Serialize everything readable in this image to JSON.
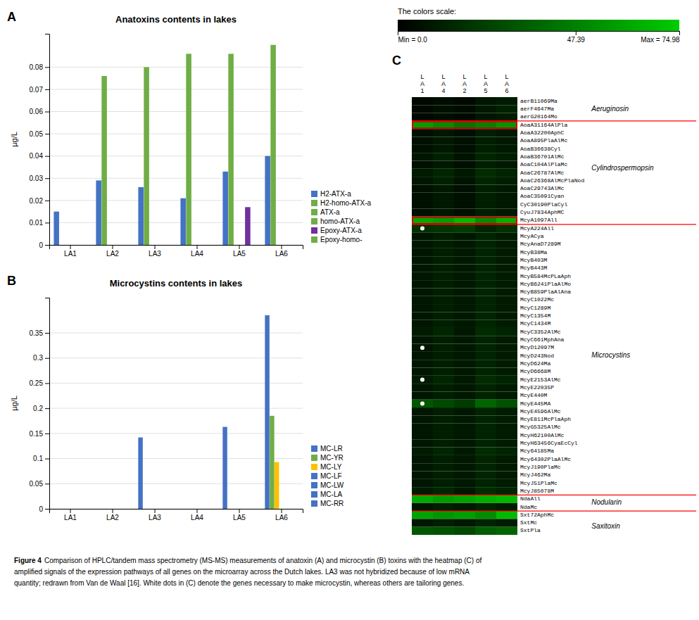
{
  "chart_data": [
    {
      "type": "bar",
      "title": "Anatoxins contents in lakes",
      "ylabel": "µg/L",
      "annotations": [
        "A"
      ],
      "categories": [
        "LA1",
        "LA2",
        "LA3",
        "LA4",
        "LA5",
        "LA6"
      ],
      "series": [
        {
          "name": "H2-ATX-a",
          "color": "#4472C4",
          "values": [
            0.015,
            0.029,
            0.026,
            0.021,
            0.033,
            0.04
          ]
        },
        {
          "name": "H2-homo-ATX-a",
          "color": "#70AD47",
          "values": [
            0.0,
            0.076,
            0.08,
            0.086,
            0.086,
            0.09
          ]
        },
        {
          "name": "ATX-a",
          "color": "#70AD47",
          "values": [
            0.0,
            0.0,
            0.0,
            0.0,
            0.0,
            0.0
          ]
        },
        {
          "name": "homo-ATX-a",
          "color": "#70AD47",
          "values": [
            0.0,
            0.0,
            0.0,
            0.0,
            0.0,
            0.0
          ]
        },
        {
          "name": "Epoxy-ATX-a",
          "color": "#7030A0",
          "values": [
            0.0,
            0.0,
            0.0,
            0.0,
            0.017,
            0.0
          ]
        },
        {
          "name": "Epoxy-homo-",
          "color": "#70AD47",
          "values": [
            0.0,
            0.0,
            0.0,
            0.0,
            0.0,
            0.0
          ]
        }
      ],
      "ylim": [
        0,
        0.095
      ],
      "yticks": [
        0,
        0.01,
        0.02,
        0.03,
        0.04,
        0.05,
        0.06,
        0.07,
        0.08
      ],
      "grid": true,
      "legend": "lower right"
    },
    {
      "type": "bar",
      "title": "Microcystins contents in lakes",
      "ylabel": "µg/L",
      "annotations": [
        "B"
      ],
      "categories": [
        "LA1",
        "LA2",
        "LA3",
        "LA4",
        "LA5",
        "LA6"
      ],
      "series": [
        {
          "name": "MC-LR",
          "color": "#4472C4",
          "values": [
            0.0,
            0.0,
            0.142,
            0.0,
            0.163,
            0.385
          ]
        },
        {
          "name": "MC-YR",
          "color": "#70AD47",
          "values": [
            0.0,
            0.0,
            0.0,
            0.0,
            0.0,
            0.185
          ]
        },
        {
          "name": "MC-LY",
          "color": "#FFC000",
          "values": [
            0.0,
            0.0,
            0.0,
            0.0,
            0.0,
            0.093
          ]
        },
        {
          "name": "MC-LF",
          "color": "#4472C4",
          "values": [
            0.0,
            0.0,
            0.0,
            0.0,
            0.0,
            0.0
          ]
        },
        {
          "name": "MC-LW",
          "color": "#4472C4",
          "values": [
            0.0,
            0.0,
            0.0,
            0.0,
            0.0,
            0.0
          ]
        },
        {
          "name": "MC-LA",
          "color": "#4472C4",
          "values": [
            0.0,
            0.0,
            0.0,
            0.0,
            0.0,
            0.0
          ]
        },
        {
          "name": "MC-RR",
          "color": "#4472C4",
          "values": [
            0.0,
            0.0,
            0.0,
            0.0,
            0.0,
            0.0
          ]
        }
      ],
      "ylim": [
        0,
        0.42
      ],
      "yticks": [
        0,
        0.05,
        0.1,
        0.15,
        0.2,
        0.25,
        0.3,
        0.35
      ],
      "grid": true,
      "legend": "lower right"
    },
    {
      "type": "heatmap",
      "annotations": [
        "C"
      ],
      "columns": [
        "L\nA\n1",
        "L\nA\n4",
        "L\nA\n2",
        "L\nA\n5",
        "L\nA\n6"
      ],
      "rows": [
        "aerB11069Ma",
        "aerF4647Ma",
        "aerG20164Mo",
        "AoaA31164AlPla",
        "AoaA32200AphC",
        "AoaA895PlaAlMc",
        "AoaB36638Cyl",
        "AoaB36701AlMc",
        "AoaC104AlPlaMc",
        "AoaC26787AlMc",
        "AoaC26368AlMcPlaNod",
        "AoaC29743AlMc",
        "AoaC35091Cyan",
        "CyC30190PlaCyl",
        "CyuJ7834AphMC",
        "McyA1097All",
        "McyA224All",
        "McyACya",
        "McyAnaD7289M",
        "McyB38Ma",
        "McyB403M",
        "McyB443M",
        "McyB584McPLaAph",
        "McyB6241PlaAlMo",
        "McyB859PlaAlAna",
        "McyC1022Mc",
        "McyC1289M",
        "McyC1354M",
        "McyC1434M",
        "McyC3352AlMc",
        "McyC661MphAna",
        "McyD12097M",
        "McyD243Nod",
        "McyD624Ma",
        "McyD6668M",
        "McyE2153AlMc",
        "McyE22035P",
        "McyE440M",
        "McyE445MA",
        "McyE4596AlMc",
        "McyE811McPlaAph",
        "McyG5325AlMc",
        "McyH62100AlMc",
        "McyH63456CyaEcCyl",
        "Mcy64185Ma",
        "Mcy64302PlaAlMc",
        "McyJ190PlaMc",
        "McyJ462Ma",
        "McyJ51PlaMc",
        "McyJ85078M",
        "NdaAll",
        "NdaMc",
        "Sxt72AphMc",
        "SxtMc",
        "SxtPla"
      ],
      "values": [
        [
          3,
          5,
          4,
          8,
          10
        ],
        [
          3,
          6,
          4,
          9,
          12
        ],
        [
          3,
          5,
          4,
          8,
          10
        ],
        [
          58,
          52,
          43,
          48,
          55
        ],
        [
          6,
          9,
          6,
          11,
          9
        ],
        [
          6,
          9,
          6,
          11,
          9
        ],
        [
          6,
          9,
          6,
          11,
          9
        ],
        [
          8,
          12,
          7,
          14,
          11
        ],
        [
          6,
          9,
          6,
          11,
          9
        ],
        [
          10,
          14,
          9,
          16,
          13
        ],
        [
          8,
          12,
          7,
          14,
          11
        ],
        [
          6,
          9,
          6,
          11,
          9
        ],
        [
          6,
          9,
          6,
          11,
          9
        ],
        [
          6,
          9,
          6,
          11,
          9
        ],
        [
          6,
          9,
          6,
          11,
          9
        ],
        [
          62,
          58,
          68,
          52,
          65
        ],
        [
          18,
          20,
          22,
          14,
          18
        ],
        [
          8,
          11,
          9,
          13,
          10
        ],
        [
          8,
          11,
          9,
          13,
          10
        ],
        [
          8,
          11,
          9,
          13,
          10
        ],
        [
          8,
          11,
          9,
          13,
          10
        ],
        [
          8,
          11,
          9,
          13,
          10
        ],
        [
          8,
          11,
          9,
          13,
          10
        ],
        [
          8,
          11,
          9,
          13,
          10
        ],
        [
          8,
          11,
          9,
          13,
          10
        ],
        [
          8,
          11,
          9,
          13,
          10
        ],
        [
          8,
          11,
          9,
          13,
          10
        ],
        [
          8,
          11,
          9,
          13,
          10
        ],
        [
          8,
          11,
          9,
          13,
          10
        ],
        [
          10,
          14,
          9,
          16,
          13
        ],
        [
          8,
          11,
          9,
          13,
          10
        ],
        [
          8,
          11,
          9,
          13,
          10
        ],
        [
          8,
          11,
          9,
          13,
          10
        ],
        [
          8,
          11,
          9,
          13,
          10
        ],
        [
          8,
          11,
          9,
          13,
          10
        ],
        [
          10,
          14,
          9,
          16,
          13
        ],
        [
          8,
          11,
          9,
          13,
          10
        ],
        [
          8,
          11,
          9,
          13,
          10
        ],
        [
          32,
          27,
          22,
          37,
          30
        ],
        [
          8,
          11,
          9,
          13,
          10
        ],
        [
          8,
          11,
          9,
          13,
          10
        ],
        [
          8,
          11,
          9,
          13,
          10
        ],
        [
          8,
          11,
          9,
          13,
          10
        ],
        [
          8,
          11,
          9,
          13,
          10
        ],
        [
          10,
          14,
          9,
          16,
          13
        ],
        [
          8,
          11,
          9,
          13,
          10
        ],
        [
          8,
          11,
          9,
          13,
          10
        ],
        [
          8,
          11,
          9,
          13,
          10
        ],
        [
          8,
          11,
          9,
          13,
          10
        ],
        [
          10,
          14,
          9,
          16,
          13
        ],
        [
          62,
          57,
          60,
          64,
          67
        ],
        [
          8,
          11,
          9,
          13,
          10
        ],
        [
          60,
          55,
          58,
          52,
          68
        ],
        [
          8,
          11,
          9,
          13,
          10
        ],
        [
          32,
          30,
          27,
          34,
          37
        ]
      ],
      "colorbar": {
        "title": "The colors scale:",
        "colors": [
          "#000000",
          "#00cc00"
        ],
        "range": [
          0,
          74.98
        ],
        "ticks": [
          {
            "value": 0,
            "label": "Min = 0.0"
          },
          47.39,
          {
            "value": 74.98,
            "label": "Max = 74.98"
          }
        ]
      },
      "highlights": {
        "rows": [
          3,
          15
        ],
        "color": "#cc0000"
      },
      "separators": {
        "rows": [
          2.5,
          15.5,
          49.5,
          51.5
        ],
        "color": "red"
      },
      "dots": {
        "rows": [
          16,
          31,
          35,
          38
        ],
        "color": "white"
      },
      "sections": [
        {
          "label": "Aeruginosin",
          "row": 1.0
        },
        {
          "label": "Cylindrospermopsin",
          "row": 8.5
        },
        {
          "label": "Microcystins",
          "row": 32.0
        },
        {
          "label": "Nodularin",
          "row": 50.5
        },
        {
          "label": "Saxitoxin",
          "row": 53.5
        }
      ]
    }
  ],
  "caption": {
    "title": "Figure 4",
    "lines": [
      "Comparison of HPLC/tandem mass spectrometry (MS-MS) measurements of anatoxin (A) and microcystin (B) toxins with the heatmap (C) of",
      "amplified signals of the expression pathways of all genes on the microarray across the Dutch lakes. LA3 was not hybridized because of low mRNA",
      "quantity; redrawn from Van de Waal [16]. White dots in (C) denote the genes necessary to make microcystin, whereas others are tailoring genes."
    ]
  }
}
